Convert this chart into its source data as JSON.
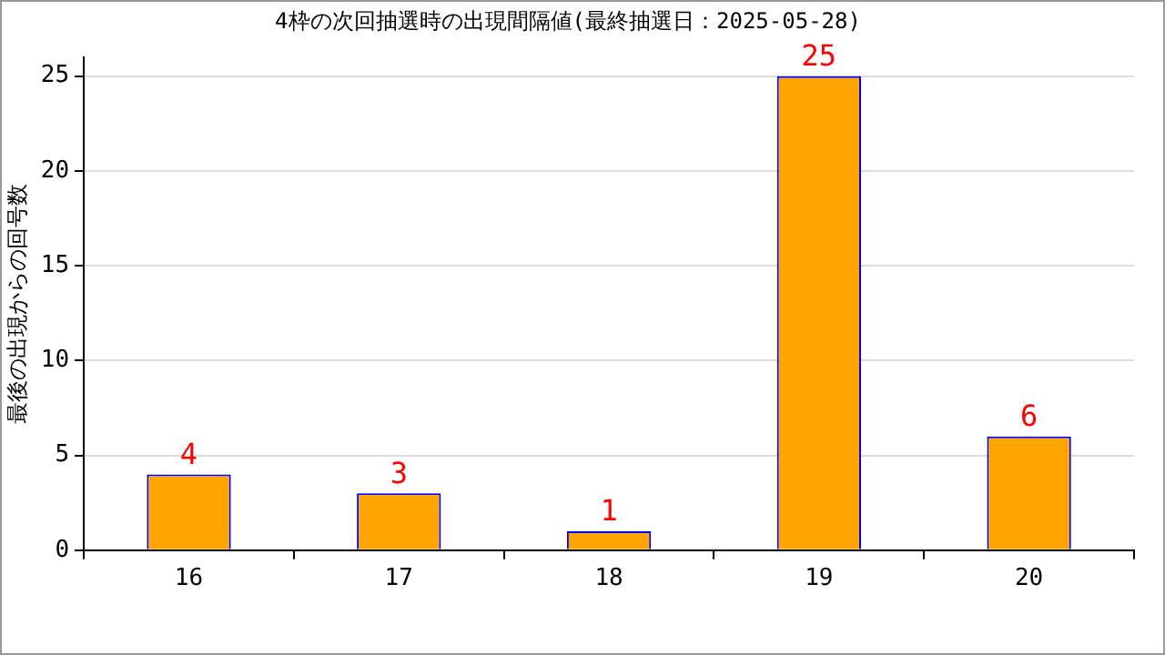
{
  "chart_data": {
    "type": "bar",
    "title": "4枠の次回抽選時の出現間隔値(最終抽選日：2025-05-28)",
    "ylabel": "最後の出現からの回号数",
    "categories": [
      "16",
      "17",
      "18",
      "19",
      "20"
    ],
    "values": [
      4,
      3,
      1,
      25,
      6
    ],
    "color": "#ffa500",
    "ylim": [
      0,
      26
    ],
    "yticks": [
      0,
      5,
      10,
      15,
      20,
      25
    ],
    "grid": "y",
    "data_labels": true
  }
}
